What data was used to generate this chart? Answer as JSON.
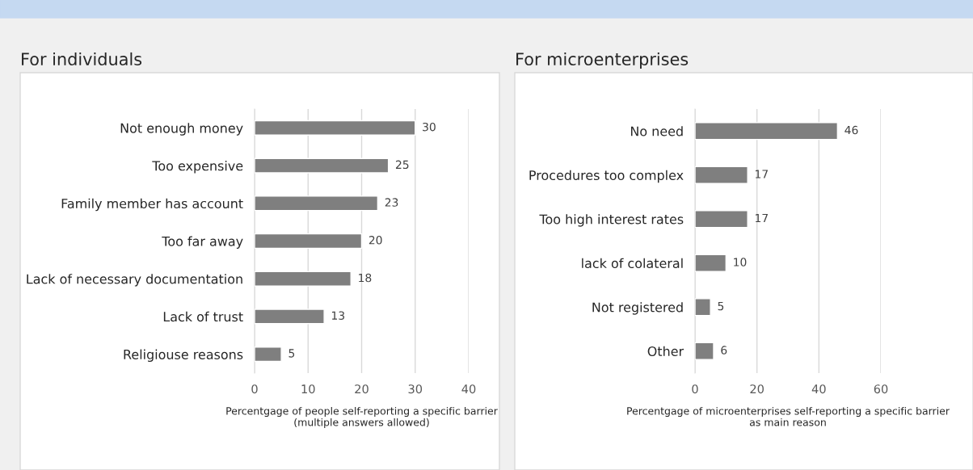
{
  "chart_data": [
    {
      "type": "bar",
      "orientation": "horizontal",
      "title": "For individuals",
      "categories": [
        "Not enough money",
        "Too expensive",
        "Family member has account",
        "Too far away",
        "Lack of necessary documentation",
        "Lack of trust",
        "Religiouse reasons"
      ],
      "values": [
        30,
        25,
        23,
        20,
        18,
        13,
        5
      ],
      "color": "#7f7f7f",
      "xlim": [
        0,
        40
      ],
      "xticks": [
        0,
        10,
        20,
        30,
        40
      ],
      "xlabel": "Percentgage of people self-reporting a specific barrier\n(multiple answers allowed)",
      "grid": "x",
      "data_labels": true
    },
    {
      "type": "bar",
      "orientation": "horizontal",
      "title": "For microenterprises",
      "categories": [
        "No need",
        "Procedures too complex",
        "Too high interest rates",
        "lack of colateral",
        "Not registered",
        "Other"
      ],
      "values": [
        46,
        17,
        17,
        10,
        5,
        6
      ],
      "color": "#7f7f7f",
      "xlim": [
        0,
        60
      ],
      "xticks": [
        0,
        20,
        40,
        60
      ],
      "xlabel": "Percentgage of microenterprises self-reporting a specific barrier\nas main reason",
      "grid": "x",
      "data_labels": true
    }
  ]
}
